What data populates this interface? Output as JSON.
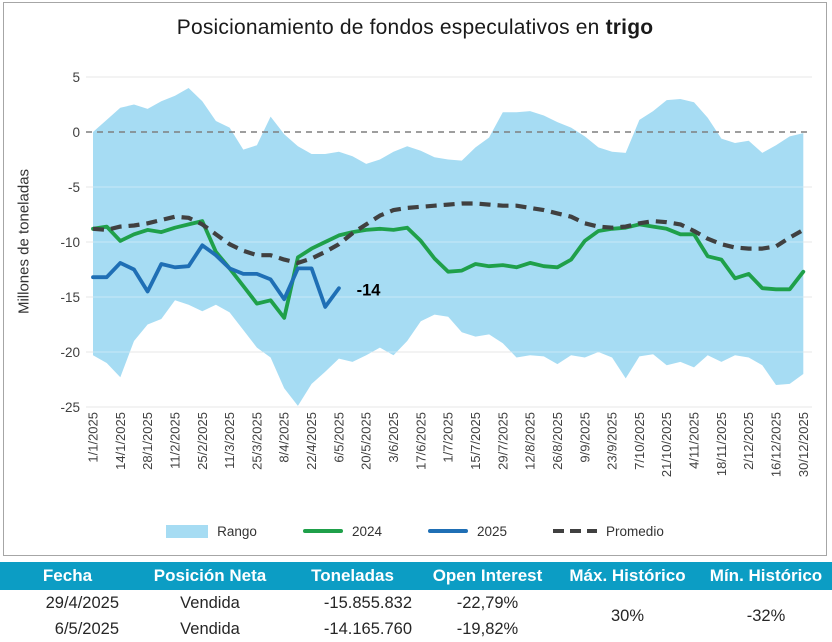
{
  "chart": {
    "title_prefix": "Posicionamiento de fondos especulativos en ",
    "title_bold": "trigo",
    "border_color": "#a6a6a6",
    "legend": [
      {
        "label": "Rango",
        "type": "area",
        "color": "#a6dcf3"
      },
      {
        "label": "2024",
        "type": "line",
        "color": "#1fa04a"
      },
      {
        "label": "2025",
        "type": "line",
        "color": "#1f6fb5"
      },
      {
        "label": "Promedio",
        "type": "dash",
        "color": "#404040"
      }
    ]
  },
  "chart_data": {
    "type": "line",
    "title": "Posicionamiento de fondos especulativos en trigo",
    "xlabel": "",
    "ylabel": "Millones de toneladas",
    "ylim": [
      -25,
      5
    ],
    "yticks": [
      5,
      0,
      -5,
      -10,
      -15,
      -20,
      -25
    ],
    "grid": true,
    "legend_position": "bottom",
    "zero_line_value": 0,
    "x_tick_labels": [
      "1/1/2025",
      "14/1/2025",
      "28/1/2025",
      "11/2/2025",
      "25/2/2025",
      "11/3/2025",
      "25/3/2025",
      "8/4/2025",
      "22/4/2025",
      "6/5/2025",
      "20/5/2025",
      "3/6/2025",
      "17/6/2025",
      "1/7/2025",
      "15/7/2025",
      "29/7/2025",
      "12/8/2025",
      "26/8/2025",
      "9/9/2025",
      "23/9/2025",
      "7/10/2025",
      "21/10/2025",
      "4/11/2025",
      "18/11/2025",
      "2/12/2025",
      "16/12/2025",
      "30/12/2025"
    ],
    "points_per_label": 2,
    "range": {
      "name": "Rango",
      "color": "#a6dcf3",
      "top": [
        0.0,
        1.1,
        2.2,
        2.5,
        2.1,
        2.8,
        3.3,
        4.0,
        2.8,
        1.0,
        0.4,
        -1.6,
        -1.2,
        1.4,
        -0.2,
        -1.3,
        -2.0,
        -2.0,
        -1.8,
        -2.2,
        -2.9,
        -2.5,
        -1.8,
        -1.3,
        -1.7,
        -2.3,
        -2.5,
        -2.6,
        -1.4,
        -0.5,
        1.8,
        1.8,
        1.9,
        1.5,
        0.9,
        0.4,
        -0.4,
        -1.4,
        -1.8,
        -1.9,
        1.1,
        1.9,
        2.9,
        3.0,
        2.7,
        1.3,
        -0.6,
        -1.0,
        -0.8,
        -1.9,
        -1.2,
        -0.4,
        -0.1
      ],
      "bottom": [
        -20.3,
        -21.0,
        -22.3,
        -19.0,
        -17.5,
        -17.0,
        -15.3,
        -15.7,
        -16.3,
        -15.7,
        -16.4,
        -18.0,
        -19.6,
        -20.5,
        -23.3,
        -24.9,
        -22.9,
        -21.8,
        -20.6,
        -20.9,
        -20.3,
        -19.6,
        -20.3,
        -19.0,
        -17.2,
        -16.6,
        -16.8,
        -18.2,
        -18.6,
        -18.4,
        -19.2,
        -20.5,
        -20.3,
        -20.4,
        -21.1,
        -20.3,
        -20.5,
        -20.0,
        -20.5,
        -22.4,
        -20.4,
        -20.2,
        -21.2,
        -20.9,
        -21.4,
        -20.3,
        -20.9,
        -20.3,
        -20.5,
        -21.2,
        -23.0,
        -22.9,
        -22.0
      ]
    },
    "series": [
      {
        "name": "2024",
        "color": "#1fa04a",
        "dash": null,
        "values": [
          -8.8,
          -8.6,
          -9.9,
          -9.3,
          -8.9,
          -9.1,
          -8.7,
          -8.4,
          -8.1,
          -10.9,
          -12.4,
          -14.0,
          -15.6,
          -15.3,
          -16.9,
          -11.4,
          -10.6,
          -10.0,
          -9.4,
          -9.1,
          -8.9,
          -8.8,
          -8.9,
          -8.7,
          -9.9,
          -11.5,
          -12.7,
          -12.6,
          -12.0,
          -12.2,
          -12.1,
          -12.3,
          -11.9,
          -12.2,
          -12.3,
          -11.6,
          -9.9,
          -9.0,
          -8.8,
          -8.7,
          -8.4,
          -8.6,
          -8.8,
          -9.3,
          -9.3,
          -11.3,
          -11.6,
          -13.3,
          -12.9,
          -14.2,
          -14.3,
          -14.3,
          -12.7
        ]
      },
      {
        "name": "Promedio",
        "color": "#404040",
        "dash": "11 7",
        "values": [
          -8.8,
          -8.9,
          -8.6,
          -8.5,
          -8.3,
          -8.0,
          -7.7,
          -7.8,
          -8.4,
          -9.3,
          -10.2,
          -10.8,
          -11.2,
          -11.2,
          -11.6,
          -11.9,
          -11.5,
          -10.9,
          -10.2,
          -9.2,
          -8.4,
          -7.6,
          -7.1,
          -6.9,
          -6.8,
          -6.7,
          -6.6,
          -6.5,
          -6.5,
          -6.6,
          -6.7,
          -6.7,
          -6.9,
          -7.1,
          -7.4,
          -7.7,
          -8.3,
          -8.6,
          -8.7,
          -8.6,
          -8.3,
          -8.1,
          -8.2,
          -8.4,
          -9.0,
          -9.7,
          -10.2,
          -10.5,
          -10.6,
          -10.6,
          -10.4,
          -9.6,
          -8.9
        ]
      },
      {
        "name": "2025",
        "color": "#1f6fb5",
        "dash": null,
        "values": [
          -13.2,
          -13.2,
          -11.9,
          -12.5,
          -14.5,
          -12.0,
          -12.3,
          -12.2,
          -10.3,
          -11.2,
          -12.4,
          -12.9,
          -12.9,
          -13.4,
          -15.2,
          -12.4,
          -12.4,
          -15.9,
          -14.2
        ]
      }
    ],
    "annotation": {
      "text": "-14",
      "x_index": 19.3,
      "y_value": -14.4
    }
  },
  "table": {
    "header_bg": "#0c9dc4",
    "headers": [
      "Fecha",
      "Posición Neta",
      "Toneladas",
      "Open Interest",
      "Máx. Histórico",
      "Mín. Histórico"
    ],
    "rows": [
      [
        "29/4/2025",
        "Vendida",
        "-15.855.832",
        "-22,79%"
      ],
      [
        "6/5/2025",
        "Vendida",
        "-14.165.760",
        "-19,82%"
      ]
    ],
    "max_historico": "30%",
    "min_historico": "-32%"
  }
}
